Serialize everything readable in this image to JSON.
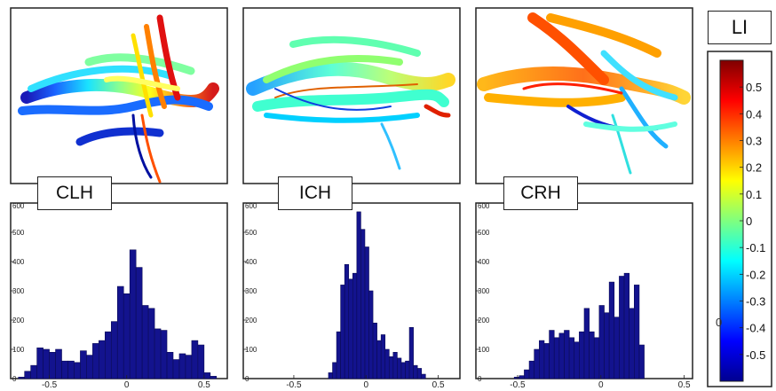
{
  "chart_data": [
    {
      "type": "histogram",
      "title": "CLH",
      "xlim": [
        -0.75,
        0.65
      ],
      "ylim": [
        0,
        600
      ],
      "x_ticks": [
        "-0.5",
        "0",
        "0.5"
      ],
      "x_tick_values": [
        -0.5,
        0,
        0.5
      ],
      "y_ticks": [
        "0",
        "100",
        "200",
        "300",
        "400",
        "500",
        "600"
      ],
      "y_tick_values": [
        0,
        100,
        200,
        300,
        400,
        500,
        600
      ],
      "bin_start": -0.7,
      "bin_width": 0.04,
      "values": [
        5,
        25,
        45,
        105,
        100,
        90,
        100,
        60,
        60,
        55,
        95,
        80,
        120,
        130,
        160,
        195,
        315,
        290,
        440,
        380,
        250,
        240,
        170,
        165,
        90,
        65,
        85,
        80,
        130,
        115,
        20,
        8
      ]
    },
    {
      "type": "histogram",
      "title": "ICH",
      "xlim": [
        -0.85,
        0.65
      ],
      "ylim": [
        0,
        600
      ],
      "x_ticks": [
        "-0.5",
        "0",
        "0.5"
      ],
      "x_tick_values": [
        -0.5,
        0,
        0.5
      ],
      "y_ticks": [
        "0",
        "100",
        "200",
        "300",
        "400",
        "500",
        "600"
      ],
      "y_tick_values": [
        0,
        100,
        200,
        300,
        400,
        500,
        600
      ],
      "bin_start": -0.26,
      "bin_width": 0.028,
      "values": [
        20,
        55,
        160,
        320,
        390,
        340,
        360,
        570,
        510,
        450,
        300,
        190,
        130,
        150,
        100,
        75,
        90,
        70,
        55,
        60,
        175,
        45,
        35,
        15
      ]
    },
    {
      "type": "histogram",
      "title": "CRH",
      "xlim": [
        -0.75,
        0.55
      ],
      "ylim": [
        0,
        600
      ],
      "x_ticks": [
        "-0.5",
        "0",
        "0.5"
      ],
      "x_tick_values": [
        -0.5,
        0,
        0.5
      ],
      "y_ticks": [
        "0",
        "100",
        "200",
        "300",
        "400",
        "500",
        "600"
      ],
      "y_tick_values": [
        0,
        100,
        200,
        300,
        400,
        500,
        600
      ],
      "bin_start": -0.52,
      "bin_width": 0.03,
      "values": [
        5,
        10,
        30,
        60,
        100,
        130,
        120,
        165,
        140,
        155,
        165,
        140,
        125,
        160,
        240,
        160,
        140,
        250,
        225,
        330,
        210,
        350,
        360,
        240,
        320,
        115
      ]
    }
  ],
  "labels": {
    "clh": "CLH",
    "ich": "ICH",
    "crh": "CRH",
    "li": "LI"
  },
  "colorbar": {
    "range": [
      -0.6,
      0.6
    ],
    "ticks": [
      "0.5",
      "0.4",
      "0.3",
      "0.2",
      "0.1",
      "0",
      "-0.1",
      "-0.2",
      "-0.3",
      "-0.4",
      "-0.5"
    ],
    "tick_values": [
      0.5,
      0.4,
      0.3,
      0.2,
      0.1,
      0,
      -0.1,
      -0.2,
      -0.3,
      -0.4,
      -0.5
    ],
    "colors": [
      "#7f0000",
      "#ff0000",
      "#ff7f00",
      "#ffff00",
      "#7fff7f",
      "#00ffff",
      "#007fff",
      "#0000ff",
      "#00008f"
    ],
    "stray_label": "0"
  },
  "colors": {
    "bar": "#13138e",
    "bar_edge": "#0b0b55",
    "axis": "#222222",
    "frame": "#222222"
  }
}
